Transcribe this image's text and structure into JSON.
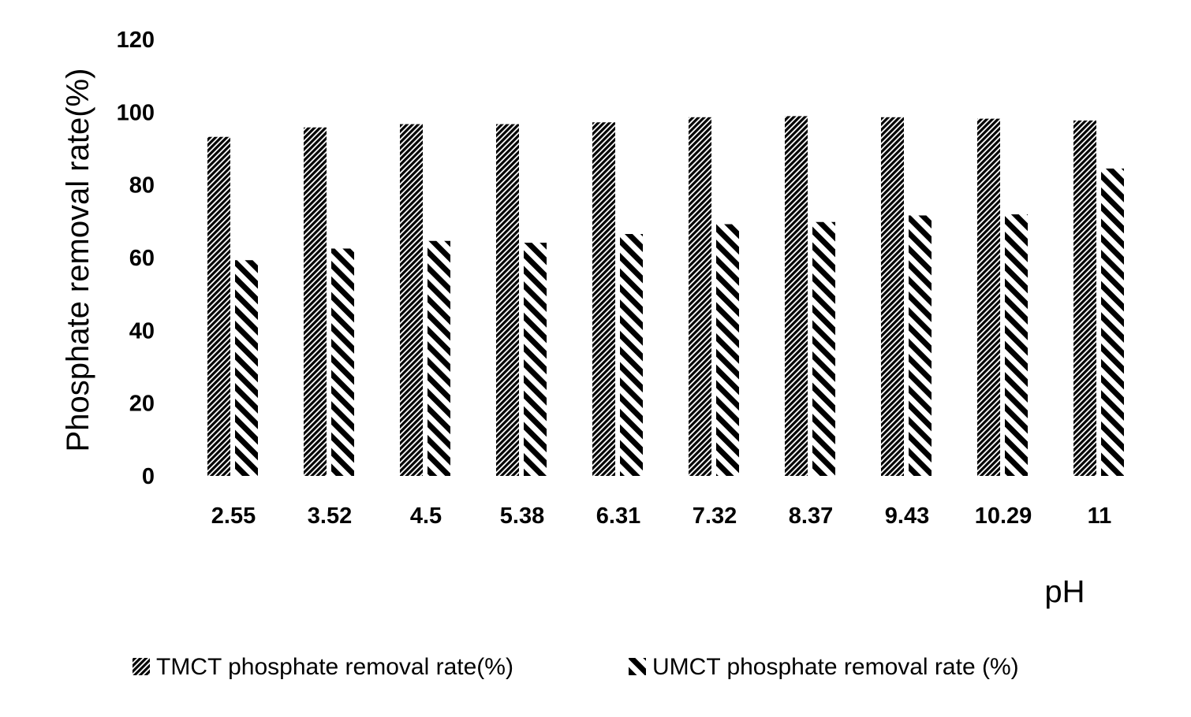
{
  "chart_data": {
    "type": "bar",
    "title": "",
    "xlabel": "pH",
    "ylabel": "Phosphate removal rate(%)",
    "ylim": [
      0,
      120
    ],
    "yticks": [
      "0",
      "20",
      "40",
      "60",
      "80",
      "100",
      "120"
    ],
    "categories": [
      "2.55",
      "3.52",
      "4.5",
      "5.38",
      "6.31",
      "7.32",
      "8.37",
      "9.43",
      "10.29",
      "11"
    ],
    "series": [
      {
        "name": "TMCT phosphate removal rate(%)",
        "values": [
          93.2,
          95.8,
          96.7,
          96.7,
          97.2,
          98.6,
          98.9,
          98.6,
          98.2,
          97.7
        ]
      },
      {
        "name": "UMCT phosphate removal rate (%)",
        "values": [
          59.3,
          62.5,
          64.6,
          64.1,
          66.5,
          69.2,
          69.8,
          71.6,
          71.9,
          84.5
        ]
      }
    ],
    "grid": false,
    "legend_position": "bottom"
  }
}
